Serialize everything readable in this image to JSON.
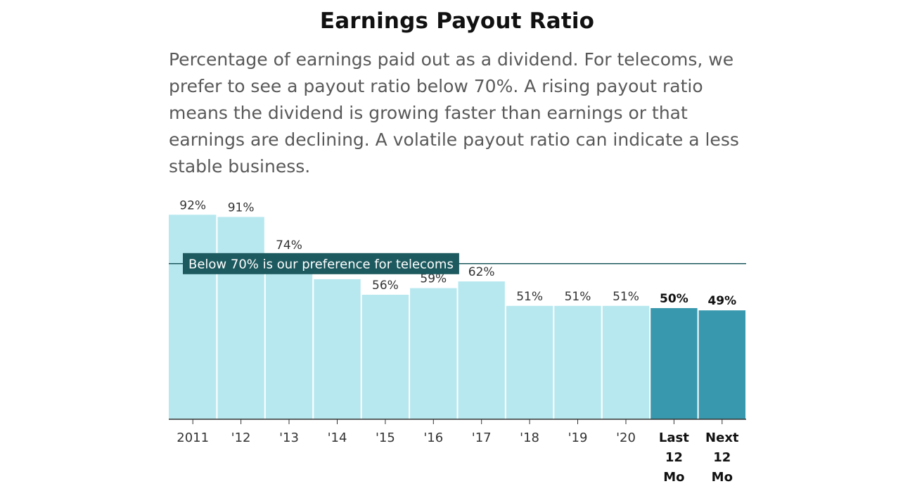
{
  "colors": {
    "bar": "#b7e8ef",
    "bar_highlight": "#3898ad",
    "reference_line": "#1d5a5f",
    "axis": "#333333"
  },
  "chart_data": {
    "type": "bar",
    "title": "Earnings Payout Ratio",
    "subtitle": "Percentage of earnings paid out as a dividend. For telecoms, we prefer to see a payout ratio below 70%. A rising payout ratio means the dividend is growing faster than earnings or that earnings are declining. A volatile payout ratio can indicate a less stable business.",
    "categories": [
      "2011",
      "'12",
      "'13",
      "'14",
      "'15",
      "'16",
      "'17",
      "'18",
      "'19",
      "'20",
      "Last 12 Mo",
      "Next 12 Mo"
    ],
    "category_lines": [
      [
        "2011"
      ],
      [
        "'12"
      ],
      [
        "'13"
      ],
      [
        "'14"
      ],
      [
        "'15"
      ],
      [
        "'16"
      ],
      [
        "'17"
      ],
      [
        "'18"
      ],
      [
        "'19"
      ],
      [
        "'20"
      ],
      [
        "Last",
        "12",
        "Mo"
      ],
      [
        "Next",
        "12",
        "Mo"
      ]
    ],
    "values": [
      92,
      91,
      74,
      63,
      56,
      59,
      62,
      51,
      51,
      51,
      50,
      49
    ],
    "value_labels": [
      "92%",
      "91%",
      "74%",
      "",
      "56%",
      "59%",
      "62%",
      "51%",
      "51%",
      "51%",
      "50%",
      "49%"
    ],
    "highlighted": [
      false,
      false,
      false,
      false,
      false,
      false,
      false,
      false,
      false,
      false,
      true,
      true
    ],
    "ylim": [
      0,
      100
    ],
    "xlabel": "",
    "ylabel": "",
    "reference_line": {
      "value": 70,
      "label": "Below 70% is our preference for telecoms"
    }
  }
}
